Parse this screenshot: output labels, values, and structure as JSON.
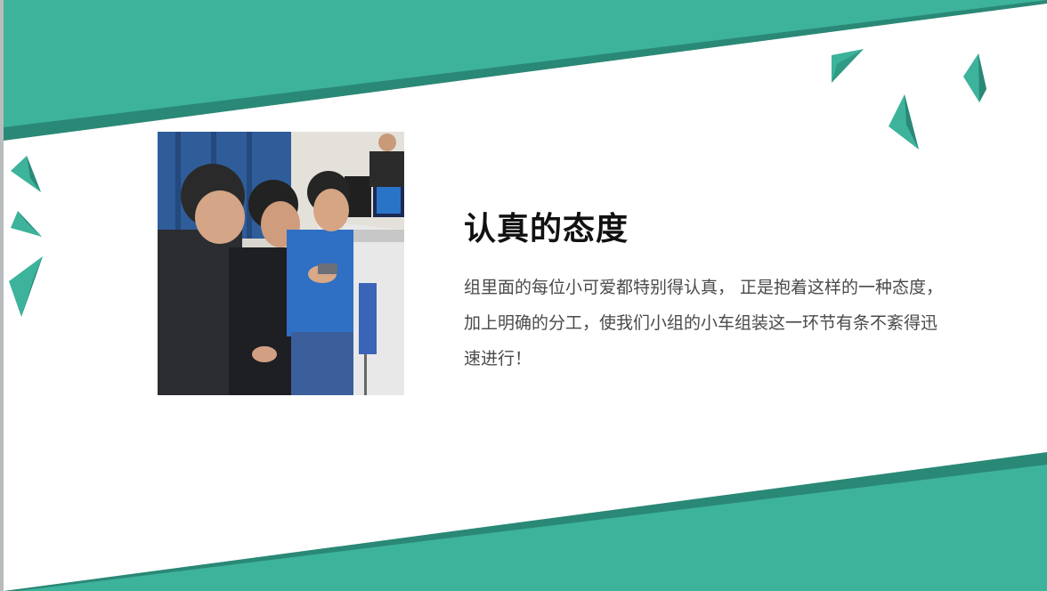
{
  "slide": {
    "title": "认真的态度",
    "body": "组里面的每位小可爱都特别得认真，  正是抱着这样的一种态度，加上明确的分工，使我们小组的小车组装这一环节有条不紊得迅速进行！"
  },
  "colors": {
    "accent": "#3db39c",
    "accent_dark": "#2a8876",
    "title_text": "#111111",
    "body_text": "#4a4a4a",
    "background": "#ffffff"
  },
  "photo": {
    "icon": "team-assembling-robot-car-photo"
  }
}
